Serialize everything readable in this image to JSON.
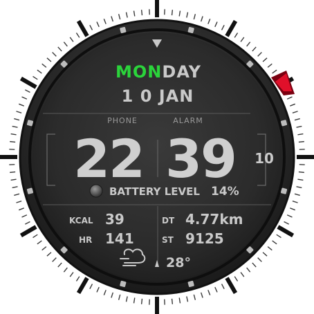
{
  "date": {
    "day_highlight": "MON",
    "day_rest": "DAY",
    "date_text": "1 0 JAN"
  },
  "labels": {
    "phone": "PHONE",
    "alarm": "ALARM"
  },
  "time": {
    "hours": "22",
    "minutes": "39",
    "seconds": "10"
  },
  "battery": {
    "label": "BATTERY LEVEL",
    "value": "14%"
  },
  "stats": {
    "kcal_label": "KCAL",
    "kcal_value": "39",
    "hr_label": "HR",
    "hr_value": "141",
    "dt_label": "DT",
    "dt_value": "4.77km",
    "st_label": "ST",
    "st_value": "9125"
  },
  "weather": {
    "temperature": "28°",
    "icon": "cloud-wind-icon"
  },
  "colors": {
    "accent_green": "#2bd43b",
    "accent_red": "#e0102a",
    "text_gray": "#c9c9c9",
    "dial_dark": "#2a2a2a"
  }
}
